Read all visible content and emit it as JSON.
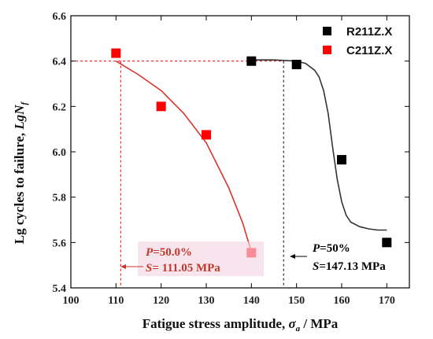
{
  "chart_data": {
    "type": "scatter",
    "xlabel": "Fatigue stress amplitude, σ_a / MPa",
    "ylabel": "Lg cycles to failure, LgN_f",
    "xlim": [
      100,
      175
    ],
    "ylim": [
      5.4,
      6.6
    ],
    "x_ticks": [
      100,
      110,
      120,
      130,
      140,
      150,
      160,
      170
    ],
    "y_ticks": [
      5.4,
      5.6,
      5.8,
      6.0,
      6.2,
      6.4,
      6.6
    ],
    "grid": false,
    "legend_position": "top-right",
    "series": [
      {
        "name": "R211Z.X",
        "color": "#000000",
        "marker": "square",
        "points": [
          [
            140,
            6.4
          ],
          [
            150,
            6.385
          ],
          [
            160,
            5.965
          ],
          [
            170,
            5.6
          ]
        ],
        "fit_curve": [
          [
            140,
            6.405
          ],
          [
            145,
            6.405
          ],
          [
            150,
            6.4
          ],
          [
            152,
            6.39
          ],
          [
            154,
            6.36
          ],
          [
            155,
            6.33
          ],
          [
            156,
            6.27
          ],
          [
            157,
            6.17
          ],
          [
            158,
            6.02
          ],
          [
            159,
            5.88
          ],
          [
            160,
            5.78
          ],
          [
            161,
            5.72
          ],
          [
            162,
            5.69
          ],
          [
            164,
            5.67
          ],
          [
            166,
            5.66
          ],
          [
            168,
            5.655
          ],
          [
            170,
            5.655
          ]
        ],
        "fit_color": "#333333"
      },
      {
        "name": "C211Z.X",
        "color": "#ff0000",
        "marker": "square",
        "points": [
          [
            110,
            6.435
          ],
          [
            120,
            6.2
          ],
          [
            130,
            6.075
          ],
          [
            140,
            5.555
          ]
        ],
        "fit_curve": [
          [
            110,
            6.4
          ],
          [
            115,
            6.34
          ],
          [
            120,
            6.27
          ],
          [
            125,
            6.17
          ],
          [
            130,
            6.04
          ],
          [
            135,
            5.84
          ],
          [
            138,
            5.69
          ],
          [
            140,
            5.56
          ]
        ],
        "fit_color": "#d9342b"
      }
    ],
    "reference_lines": [
      {
        "orientation": "horizontal",
        "value": 6.4,
        "from": 100,
        "to": 147.13,
        "color": "#ff0000"
      },
      {
        "orientation": "vertical",
        "value": 111.05,
        "color": "#ff0000"
      },
      {
        "orientation": "vertical",
        "value": 147.13,
        "color": "#000000"
      }
    ],
    "annotations": {
      "c211": {
        "p_label": "P=50.0%",
        "s_label": "S= 111.05 MPa",
        "color": "#c0392b"
      },
      "r211": {
        "p_label": "P=50%",
        "s_label": "S=147.13 MPa",
        "color": "#000000"
      }
    }
  }
}
